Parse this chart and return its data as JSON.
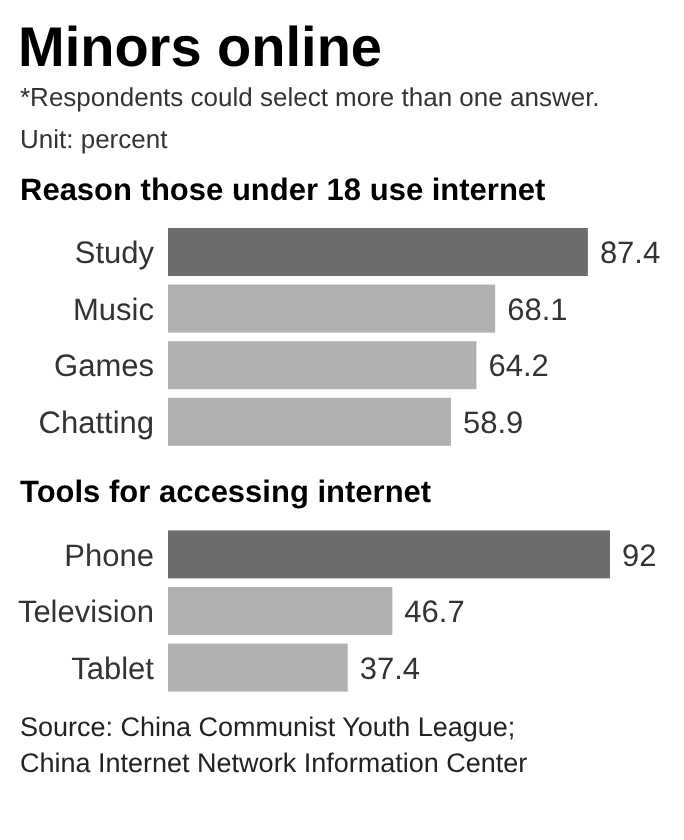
{
  "chart_data": [
    {
      "type": "bar",
      "orientation": "horizontal",
      "title": "Minors online",
      "subtitle": "Reason those under 18 use internet",
      "annotations": [
        "*Respondents could select more than one answer.",
        "Unit: percent"
      ],
      "categories": [
        "Study",
        "Music",
        "Games",
        "Chatting"
      ],
      "values": [
        87.4,
        68.1,
        64.2,
        58.9
      ],
      "colors": [
        "#6d6d6d",
        "#b0b0b0",
        "#b0b0b0",
        "#b0b0b0"
      ],
      "data_labels": true
    },
    {
      "type": "bar",
      "orientation": "horizontal",
      "title": "Tools for accessing internet",
      "annotations": [
        "Source: China Communist Youth League;",
        "China Internet Network Information Center"
      ],
      "categories": [
        "Phone",
        "Television",
        "Tablet"
      ],
      "values": [
        92,
        46.7,
        37.4
      ],
      "colors": [
        "#6d6d6d",
        "#b0b0b0",
        "#b0b0b0"
      ],
      "data_labels": true
    }
  ]
}
